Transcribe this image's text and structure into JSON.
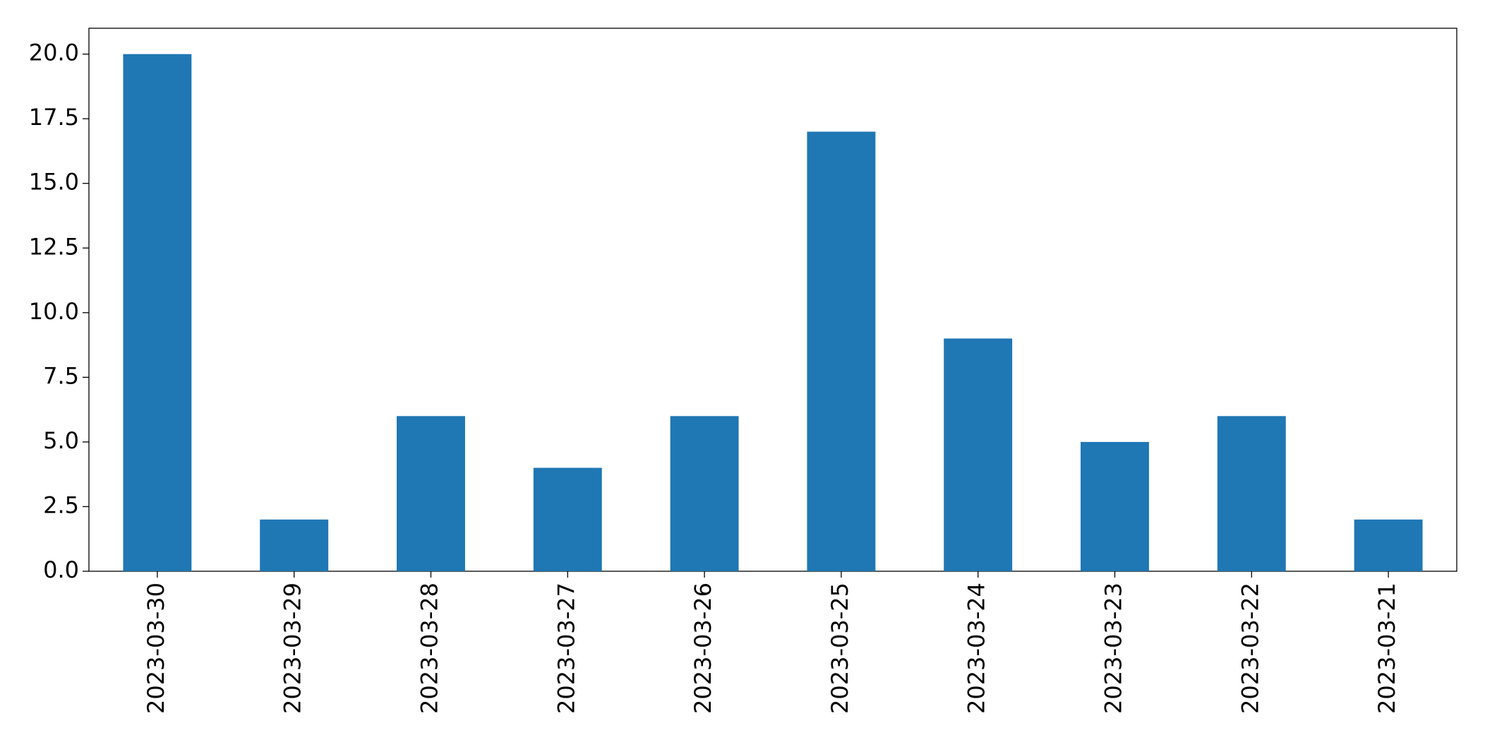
{
  "chart_data": {
    "type": "bar",
    "categories": [
      "2023-03-30",
      "2023-03-29",
      "2023-03-28",
      "2023-03-27",
      "2023-03-26",
      "2023-03-25",
      "2023-03-24",
      "2023-03-23",
      "2023-03-22",
      "2023-03-21"
    ],
    "values": [
      20,
      2,
      6,
      4,
      6,
      17,
      9,
      5,
      6,
      2
    ],
    "color": "#1f77b4",
    "ylim": [
      0,
      21
    ],
    "yticks": [
      {
        "value": 0,
        "label": "0.0"
      },
      {
        "value": 2.5,
        "label": "2.5"
      },
      {
        "value": 5,
        "label": "5.0"
      },
      {
        "value": 7.5,
        "label": "7.5"
      },
      {
        "value": 10,
        "label": "10.0"
      },
      {
        "value": 12.5,
        "label": "12.5"
      },
      {
        "value": 15,
        "label": "15.0"
      },
      {
        "value": 17.5,
        "label": "17.5"
      },
      {
        "value": 20,
        "label": "20.0"
      }
    ],
    "grid": false
  }
}
